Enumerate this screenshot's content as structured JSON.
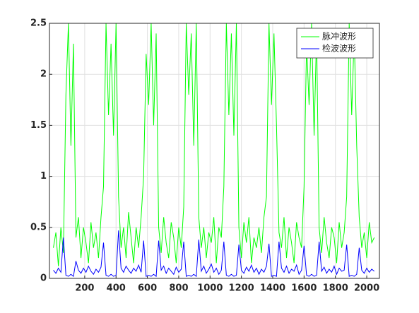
{
  "chart_data": {
    "type": "line",
    "x": [
      0,
      16,
      32,
      48,
      64,
      80,
      96,
      112,
      128,
      144,
      160,
      176,
      192,
      208,
      224,
      240,
      256,
      272,
      288,
      304,
      320,
      336,
      352,
      368,
      384,
      400,
      416,
      432,
      448,
      464,
      480,
      496,
      512,
      528,
      544,
      560,
      576,
      592,
      608,
      624,
      640,
      656,
      672,
      688,
      704,
      720,
      736,
      752,
      768,
      784,
      800,
      816,
      832,
      848,
      864,
      880,
      896,
      912,
      928,
      944,
      960,
      976,
      992,
      1008,
      1024,
      1040,
      1056,
      1072,
      1088,
      1104,
      1120,
      1136,
      1152,
      1168,
      1184,
      1200,
      1216,
      1232,
      1248,
      1264,
      1280,
      1296,
      1312,
      1328,
      1344,
      1360,
      1376,
      1392,
      1408,
      1424,
      1440,
      1456,
      1472,
      1488,
      1504,
      1520,
      1536,
      1552,
      1568,
      1584,
      1600,
      1616,
      1632,
      1648,
      1664,
      1680,
      1696,
      1712,
      1728,
      1744,
      1760,
      1776,
      1792,
      1808,
      1824,
      1840,
      1856,
      1872,
      1888,
      1904,
      1920,
      1936,
      1952,
      1968,
      1984,
      2000,
      2016,
      2032,
      2048
    ],
    "series": [
      {
        "name": "脉冲波形",
        "color": "#00ff00",
        "values": [
          0.3,
          0.45,
          0.12,
          0.5,
          0.25,
          1.8,
          2.5,
          1.3,
          2.3,
          0.4,
          0.6,
          0.2,
          0.5,
          0.35,
          0.15,
          0.55,
          0.3,
          0.45,
          0.2,
          0.6,
          0.9,
          2.5,
          1.6,
          2.3,
          1.4,
          2.5,
          0.8,
          0.3,
          0.5,
          0.2,
          0.65,
          0.4,
          0.15,
          0.5,
          0.3,
          0.6,
          1.0,
          2.2,
          1.7,
          2.5,
          1.5,
          2.4,
          0.5,
          0.25,
          0.6,
          0.35,
          0.2,
          0.55,
          0.4,
          0.15,
          0.5,
          0.3,
          0.7,
          2.5,
          1.8,
          2.4,
          1.3,
          2.5,
          0.6,
          0.3,
          0.5,
          0.2,
          0.45,
          0.35,
          0.6,
          0.15,
          0.5,
          0.4,
          0.9,
          2.5,
          1.6,
          2.4,
          1.4,
          2.5,
          0.5,
          0.2,
          0.55,
          0.35,
          0.6,
          0.15,
          0.4,
          0.3,
          0.5,
          0.25,
          0.6,
          0.8,
          2.5,
          1.7,
          2.4,
          1.5,
          0.45,
          0.3,
          0.6,
          0.2,
          0.5,
          0.35,
          0.15,
          0.55,
          0.4,
          0.3,
          0.9,
          2.3,
          1.7,
          2.5,
          1.4,
          2.4,
          0.5,
          0.25,
          0.6,
          0.35,
          0.2,
          0.5,
          0.4,
          0.15,
          0.55,
          0.3,
          0.45,
          0.8,
          2.5,
          1.6,
          2.4,
          1.3,
          0.6,
          0.3,
          0.45,
          0.2,
          0.55,
          0.35,
          0.4
        ]
      },
      {
        "name": "检波波形",
        "color": "#0000ff",
        "values": [
          0.08,
          0.05,
          0.1,
          0.06,
          0.4,
          0.03,
          0.02,
          0.04,
          0.02,
          0.17,
          0.08,
          0.05,
          0.1,
          0.06,
          0.12,
          0.07,
          0.04,
          0.09,
          0.06,
          0.11,
          0.35,
          0.03,
          0.02,
          0.04,
          0.02,
          0.03,
          0.47,
          0.1,
          0.06,
          0.12,
          0.08,
          0.05,
          0.1,
          0.07,
          0.13,
          0.06,
          0.37,
          0.02,
          0.03,
          0.02,
          0.04,
          0.02,
          0.37,
          0.08,
          0.12,
          0.05,
          0.1,
          0.07,
          0.04,
          0.11,
          0.06,
          0.09,
          0.36,
          0.02,
          0.03,
          0.02,
          0.04,
          0.02,
          0.38,
          0.07,
          0.12,
          0.05,
          0.09,
          0.14,
          0.06,
          0.1,
          0.04,
          0.08,
          0.36,
          0.03,
          0.02,
          0.04,
          0.02,
          0.03,
          0.33,
          0.08,
          0.05,
          0.11,
          0.07,
          0.13,
          0.06,
          0.1,
          0.04,
          0.09,
          0.06,
          0.12,
          0.34,
          0.02,
          0.03,
          0.02,
          0.36,
          0.1,
          0.06,
          0.12,
          0.05,
          0.09,
          0.07,
          0.13,
          0.04,
          0.08,
          0.32,
          0.03,
          0.02,
          0.04,
          0.02,
          0.03,
          0.36,
          0.07,
          0.11,
          0.05,
          0.09,
          0.06,
          0.12,
          0.04,
          0.1,
          0.07,
          0.08,
          0.33,
          0.02,
          0.03,
          0.02,
          0.04,
          0.3,
          0.08,
          0.05,
          0.1,
          0.06,
          0.09,
          0.07
        ]
      }
    ],
    "xlim": [
      -25,
      2081
    ],
    "ylim": [
      0,
      2.5
    ],
    "xticks": [
      200,
      400,
      600,
      800,
      1000,
      1200,
      1400,
      1600,
      1800,
      2000
    ],
    "yticks": [
      0,
      0.5,
      1,
      1.5,
      2,
      2.5
    ],
    "grid": true,
    "legend": "northeast"
  }
}
